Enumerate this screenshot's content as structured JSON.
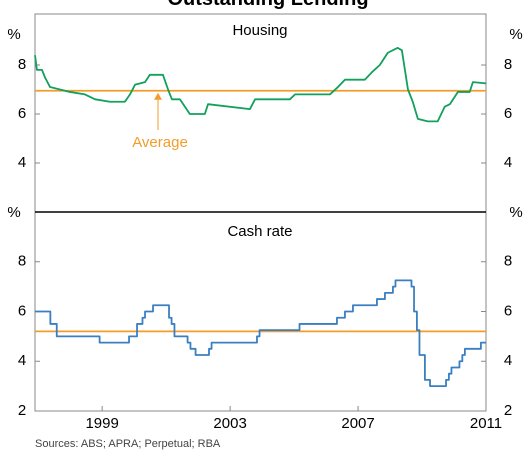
{
  "title": "Outstanding Lending",
  "source": "Sources: ABS; APRA; Perpetual; RBA",
  "chart_data": [
    {
      "type": "line",
      "title": "Housing",
      "unit": "%",
      "x": [
        1996.9,
        1996.96,
        1997.12,
        1997.21,
        1997.37,
        1997.68,
        1997.99,
        1998.46,
        1998.78,
        1999.24,
        1999.71,
        1999.87,
        2000.03,
        2000.34,
        2000.49,
        2000.9,
        2001.06,
        2001.18,
        2001.43,
        2001.74,
        2002.21,
        2002.31,
        2003.62,
        2003.78,
        2004.87,
        2005.03,
        2006.12,
        2006.37,
        2006.59,
        2007.21,
        2007.43,
        2007.68,
        2007.93,
        2008.24,
        2008.37,
        2008.56,
        2008.71,
        2008.87,
        2009.18,
        2009.49,
        2009.71,
        2009.87,
        2010.12,
        2010.49,
        2010.59,
        2011.0
      ],
      "series": [
        {
          "color": "#12a05c",
          "values": [
            8.4,
            7.8,
            7.8,
            7.5,
            7.1,
            7.0,
            6.9,
            6.8,
            6.6,
            6.5,
            6.5,
            6.8,
            7.2,
            7.3,
            7.6,
            7.6,
            7.0,
            6.6,
            6.6,
            6.0,
            6.0,
            6.4,
            6.2,
            6.6,
            6.6,
            6.8,
            6.8,
            7.1,
            7.4,
            7.4,
            7.7,
            8.0,
            8.5,
            8.7,
            8.6,
            7.0,
            6.5,
            5.8,
            5.7,
            5.7,
            6.3,
            6.4,
            6.9,
            6.9,
            7.3,
            7.25
          ]
        }
      ],
      "average": 6.95,
      "average_color": "#f39c2a",
      "annotation": "Average",
      "xlim": [
        1996.9,
        2011.0
      ],
      "ylim": [
        2,
        10
      ],
      "yticks": [
        4,
        6,
        8
      ],
      "step": false
    },
    {
      "type": "line",
      "title": "Cash rate",
      "unit": "%",
      "x": [
        1996.9,
        1997.38,
        1997.58,
        1998.92,
        1999.84,
        2000.09,
        2000.26,
        2000.34,
        2000.59,
        2001.09,
        2001.17,
        2001.26,
        2001.67,
        2001.76,
        2001.92,
        2002.34,
        2002.42,
        2003.84,
        2003.92,
        2005.17,
        2006.34,
        2006.59,
        2006.84,
        2007.59,
        2007.84,
        2008.09,
        2008.17,
        2008.67,
        2008.75,
        2008.84,
        2008.92,
        2009.09,
        2009.25,
        2009.75,
        2009.84,
        2009.92,
        2010.17,
        2010.26,
        2010.34,
        2010.84,
        2011.0
      ],
      "series": [
        {
          "color": "#3a7fc1",
          "values": [
            6.0,
            5.5,
            5.0,
            4.75,
            5.0,
            5.5,
            5.75,
            6.0,
            6.25,
            5.75,
            5.5,
            5.0,
            4.75,
            4.5,
            4.25,
            4.5,
            4.75,
            5.0,
            5.25,
            5.5,
            5.75,
            6.0,
            6.25,
            6.5,
            6.75,
            7.0,
            7.25,
            7.0,
            6.0,
            5.25,
            4.25,
            3.25,
            3.0,
            3.25,
            3.5,
            3.75,
            4.0,
            4.25,
            4.5,
            4.75,
            4.75
          ]
        }
      ],
      "average": 5.2,
      "average_color": "#f39c2a",
      "xlim": [
        1996.9,
        2011.0
      ],
      "ylim": [
        2,
        10
      ],
      "yticks": [
        2,
        4,
        6,
        8
      ],
      "xticks": [
        1999,
        2003,
        2007,
        2011
      ],
      "step": true
    }
  ]
}
